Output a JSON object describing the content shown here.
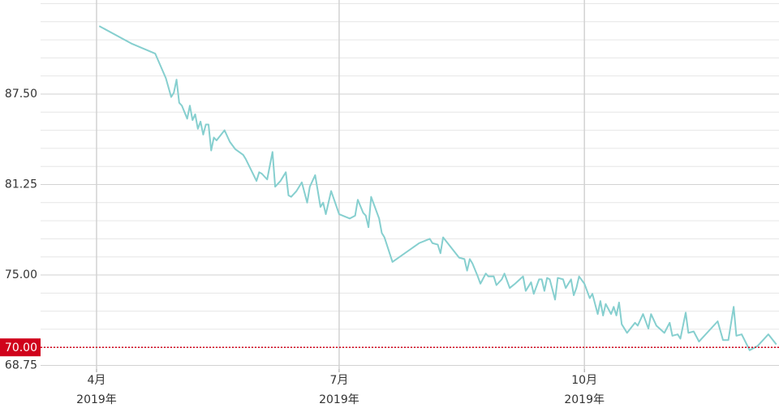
{
  "chart_data": {
    "type": "line",
    "color": "#86cfcf",
    "grid": true,
    "xlim": [
      "2019-03-11",
      "2019-12-13"
    ],
    "xticks": [
      {
        "value": "2019-04-01",
        "label": [
          "4月",
          "2019年"
        ]
      },
      {
        "value": "2019-07-01",
        "label": [
          "7月",
          "2019年"
        ]
      },
      {
        "value": "2019-10-01",
        "label": [
          "10月",
          "2019年"
        ]
      }
    ],
    "ylim": [
      68.5,
      94
    ],
    "yticks": [
      {
        "value": 68.75,
        "label": "68.75"
      },
      {
        "value": 75,
        "label": "75.00"
      },
      {
        "value": 81.25,
        "label": "81.25"
      },
      {
        "value": 87.5,
        "label": "87.50"
      }
    ],
    "minor_yticks": [
      70,
      71.25,
      72.5,
      73.75,
      76.25,
      77.5,
      78.75,
      80,
      82.5,
      83.75,
      85,
      86.25,
      88.75,
      90,
      91.25,
      92.5,
      93.75
    ],
    "reference_line": {
      "value": 70,
      "label": "70.00",
      "color": "#d0021b"
    },
    "x": [
      "2019-04-02",
      "2019-04-14",
      "2019-04-23",
      "2019-04-27",
      "2019-04-29",
      "2019-04-30",
      "2019-05-01",
      "2019-05-02",
      "2019-05-03",
      "2019-05-05",
      "2019-05-06",
      "2019-05-07",
      "2019-05-08",
      "2019-05-09",
      "2019-05-10",
      "2019-05-11",
      "2019-05-12",
      "2019-05-13",
      "2019-05-14",
      "2019-05-15",
      "2019-05-16",
      "2019-05-19",
      "2019-05-21",
      "2019-05-23",
      "2019-05-26",
      "2019-05-27",
      "2019-05-31",
      "2019-06-01",
      "2019-06-02",
      "2019-06-04",
      "2019-06-06",
      "2019-06-07",
      "2019-06-09",
      "2019-06-11",
      "2019-06-12",
      "2019-06-13",
      "2019-06-15",
      "2019-06-17",
      "2019-06-19",
      "2019-06-20",
      "2019-06-22",
      "2019-06-24",
      "2019-06-25",
      "2019-06-26",
      "2019-06-28",
      "2019-07-01",
      "2019-07-05",
      "2019-07-07",
      "2019-07-08",
      "2019-07-10",
      "2019-07-11",
      "2019-07-12",
      "2019-07-13",
      "2019-07-16",
      "2019-07-17",
      "2019-07-18",
      "2019-07-21",
      "2019-07-31",
      "2019-08-04",
      "2019-08-05",
      "2019-08-07",
      "2019-08-08",
      "2019-08-09",
      "2019-08-12",
      "2019-08-15",
      "2019-08-17",
      "2019-08-18",
      "2019-08-19",
      "2019-08-20",
      "2019-08-22",
      "2019-08-23",
      "2019-08-25",
      "2019-08-26",
      "2019-08-28",
      "2019-08-29",
      "2019-08-31",
      "2019-09-01",
      "2019-09-03",
      "2019-09-05",
      "2019-09-08",
      "2019-09-09",
      "2019-09-11",
      "2019-09-12",
      "2019-09-14",
      "2019-09-15",
      "2019-09-16",
      "2019-09-17",
      "2019-09-18",
      "2019-09-20",
      "2019-09-21",
      "2019-09-23",
      "2019-09-24",
      "2019-09-26",
      "2019-09-27",
      "2019-09-28",
      "2019-09-29",
      "2019-10-01",
      "2019-10-03",
      "2019-10-04",
      "2019-10-06",
      "2019-10-07",
      "2019-10-08",
      "2019-10-09",
      "2019-10-11",
      "2019-10-12",
      "2019-10-13",
      "2019-10-14",
      "2019-10-15",
      "2019-10-17",
      "2019-10-20",
      "2019-10-21",
      "2019-10-23",
      "2019-10-25",
      "2019-10-26",
      "2019-10-28",
      "2019-10-31",
      "2019-11-02",
      "2019-11-03",
      "2019-11-05",
      "2019-11-06",
      "2019-11-08",
      "2019-11-09",
      "2019-11-11",
      "2019-11-13",
      "2019-11-20",
      "2019-11-22",
      "2019-11-24",
      "2019-11-26",
      "2019-11-27",
      "2019-11-29",
      "2019-12-02",
      "2019-12-05",
      "2019-12-09",
      "2019-12-12"
    ],
    "values": [
      92.2,
      91.0,
      90.3,
      88.6,
      87.3,
      87.6,
      88.5,
      86.9,
      86.7,
      85.8,
      86.7,
      85.7,
      86.1,
      85.1,
      85.6,
      84.7,
      85.4,
      85.4,
      83.6,
      84.5,
      84.3,
      85.0,
      84.2,
      83.7,
      83.3,
      83.0,
      81.5,
      82.1,
      82.0,
      81.6,
      83.5,
      81.1,
      81.5,
      82.1,
      80.5,
      80.4,
      80.8,
      81.4,
      80.0,
      81.1,
      81.9,
      79.7,
      80.0,
      79.2,
      80.8,
      79.2,
      78.9,
      79.1,
      80.2,
      79.3,
      79.1,
      78.3,
      80.4,
      78.9,
      77.9,
      77.6,
      75.9,
      77.2,
      77.5,
      77.2,
      77.1,
      76.5,
      77.6,
      76.9,
      76.2,
      76.1,
      75.3,
      76.1,
      75.8,
      74.9,
      74.4,
      75.1,
      74.9,
      74.9,
      74.3,
      74.7,
      75.1,
      74.1,
      74.4,
      74.9,
      73.9,
      74.5,
      73.7,
      74.7,
      74.7,
      73.9,
      74.8,
      74.7,
      73.3,
      74.8,
      74.7,
      74.1,
      74.7,
      73.6,
      74.1,
      74.9,
      74.4,
      73.4,
      73.7,
      72.3,
      73.2,
      72.2,
      73.0,
      72.3,
      72.8,
      72.2,
      73.1,
      71.6,
      71.0,
      71.7,
      71.5,
      72.3,
      71.3,
      72.3,
      71.5,
      71.0,
      71.7,
      70.8,
      70.9,
      70.6,
      72.4,
      71.0,
      71.1,
      70.4,
      71.8,
      70.5,
      70.5,
      72.8,
      70.8,
      70.9,
      69.8,
      70.1,
      70.9,
      70.2
    ]
  }
}
